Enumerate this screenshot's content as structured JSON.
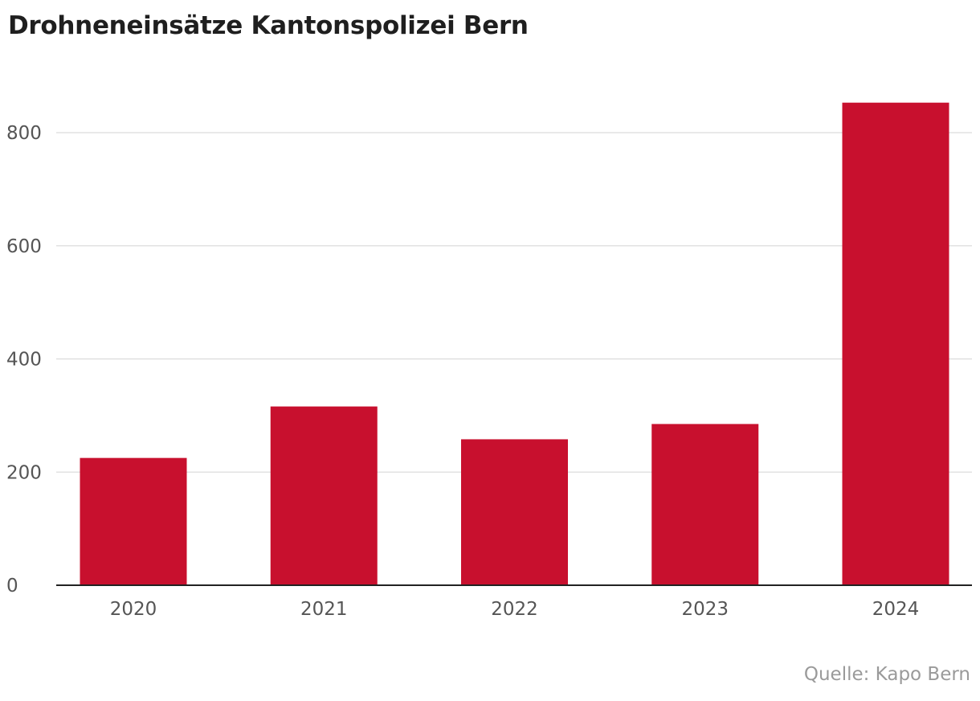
{
  "chart_data": {
    "type": "bar",
    "title": "Drohneneinsätze Kantonspolizei Bern",
    "categories": [
      "2020",
      "2021",
      "2022",
      "2023",
      "2024"
    ],
    "values": [
      225,
      316,
      258,
      285,
      853
    ],
    "ylim": [
      0,
      900
    ],
    "yticks": [
      0,
      200,
      400,
      600,
      800
    ],
    "ytick_labels": [
      "0",
      "200",
      "400",
      "600",
      "800"
    ],
    "xlabel": "",
    "ylabel": "",
    "grid": true,
    "bar_color": "#c8102e",
    "source": "Quelle: Kapo Bern"
  }
}
